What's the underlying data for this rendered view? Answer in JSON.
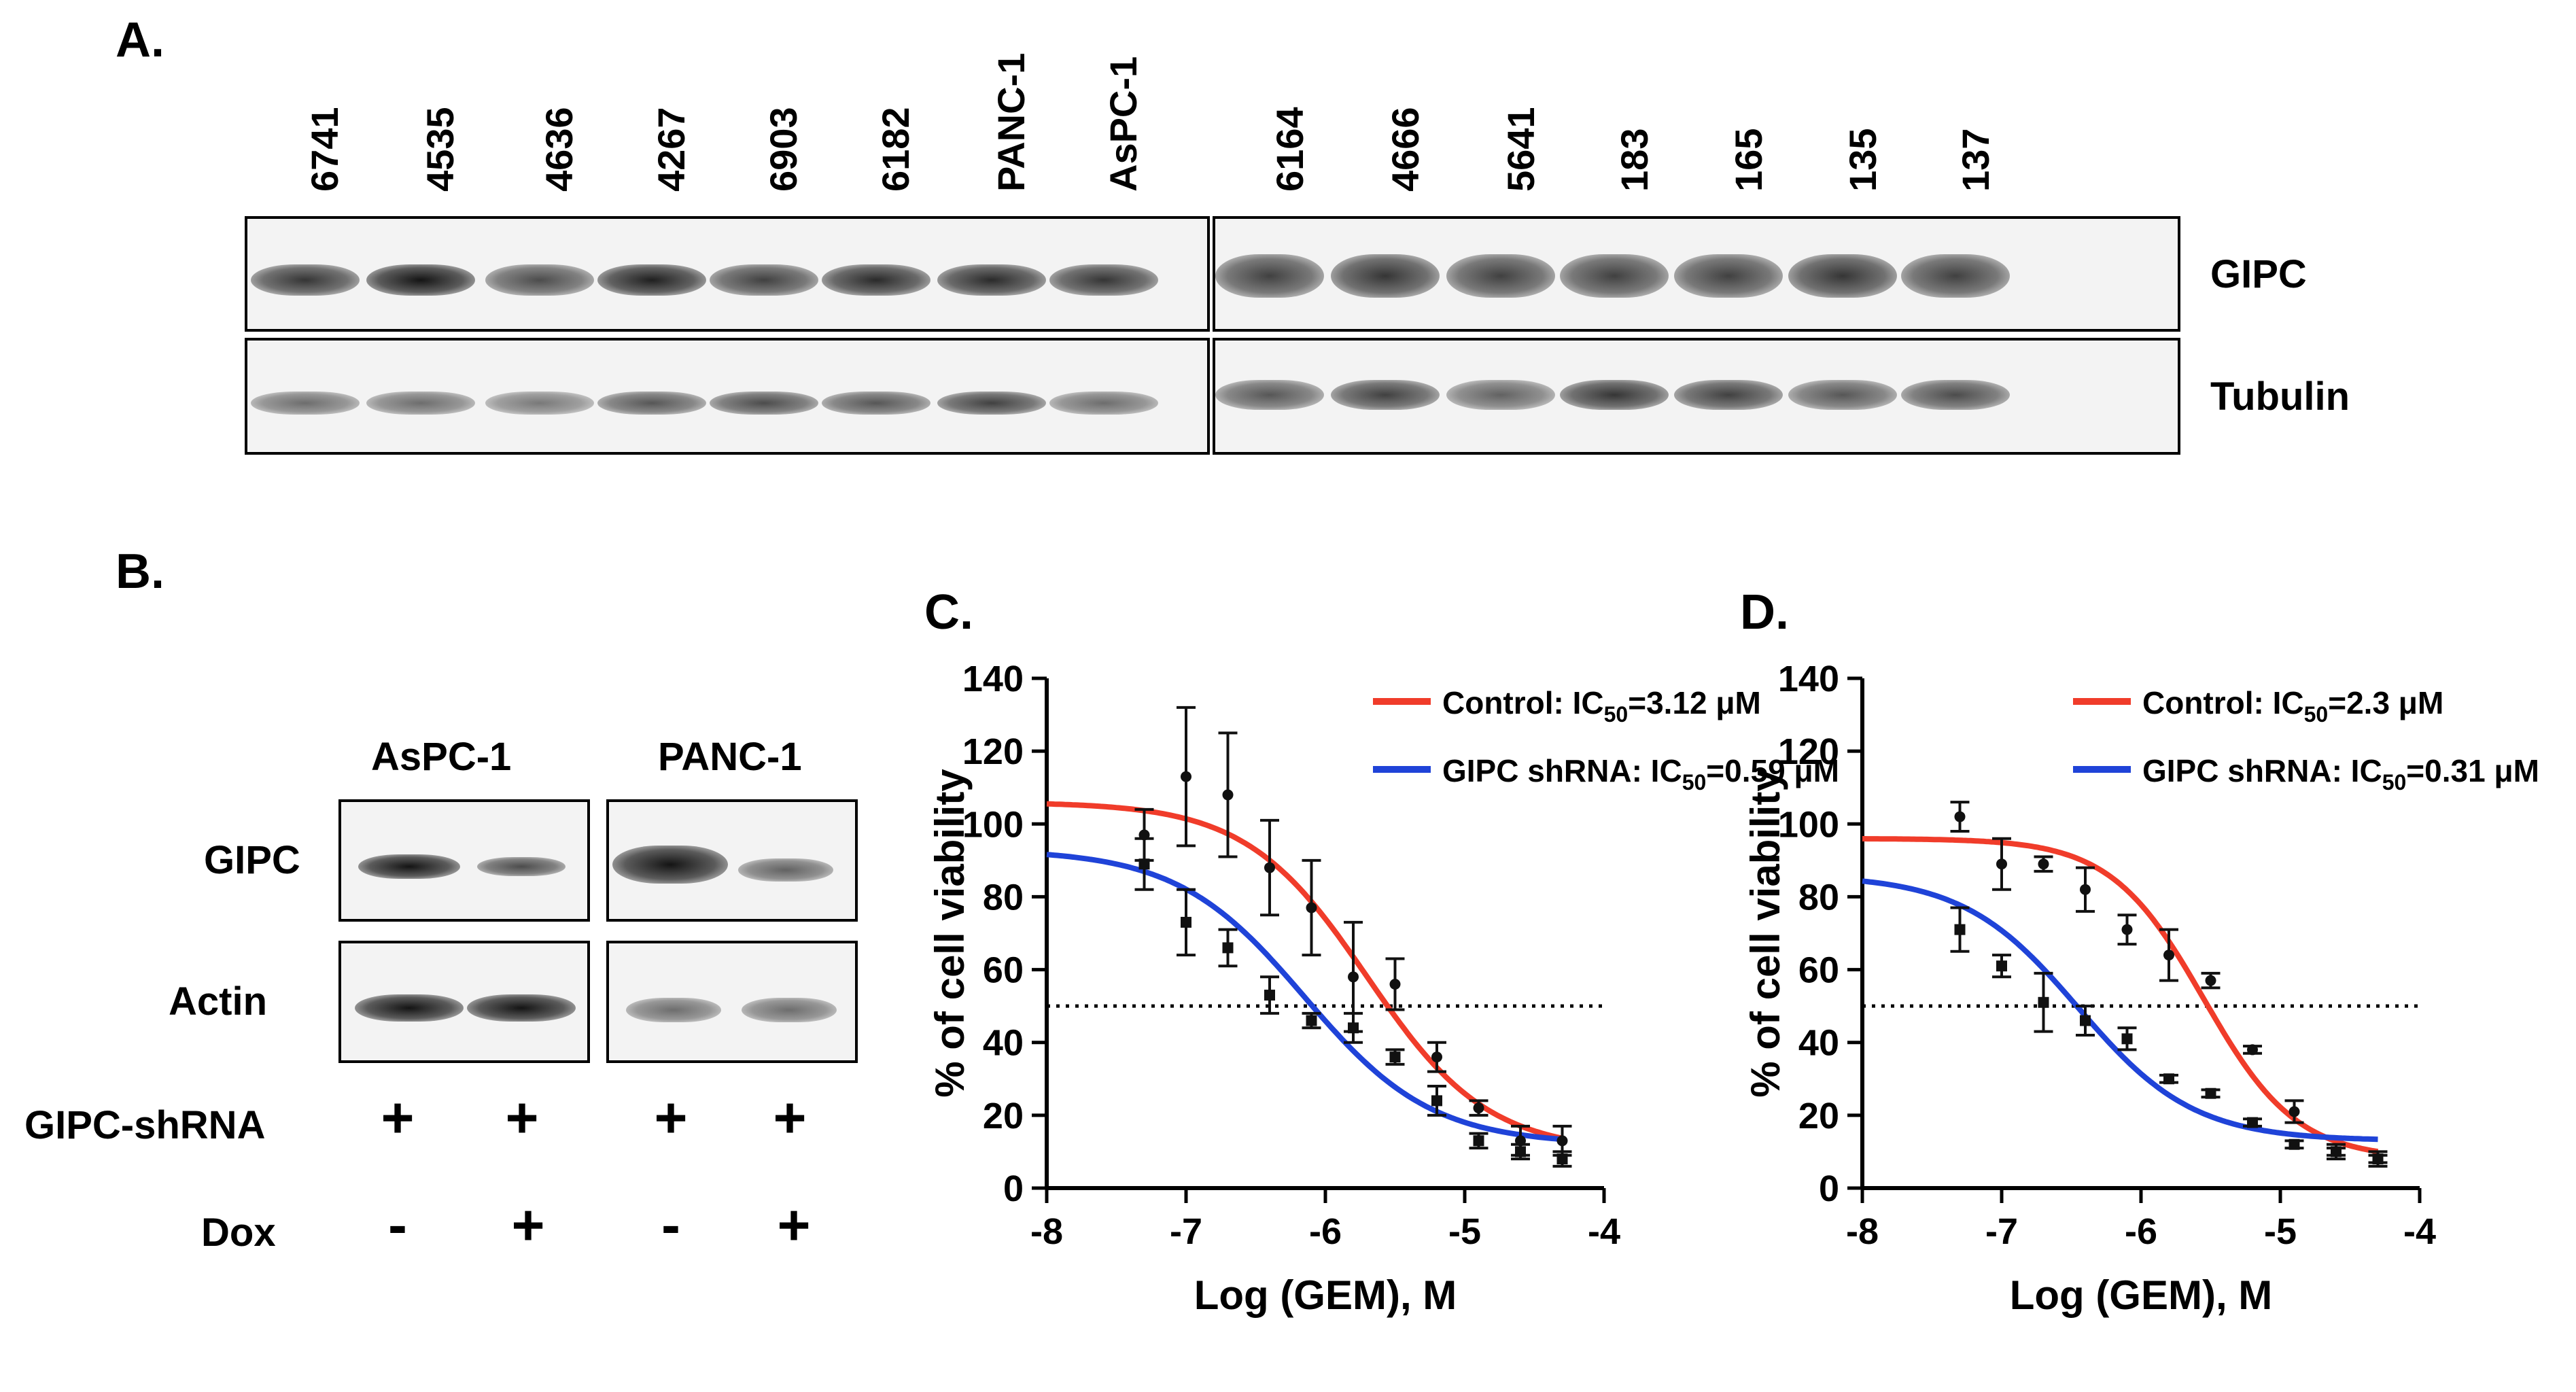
{
  "panel_a": {
    "label": "A.",
    "lanes_left": [
      "6741",
      "4535",
      "4636",
      "4267",
      "6903",
      "6182",
      "PANC-1",
      "AsPC-1"
    ],
    "lanes_right": [
      "6164",
      "4666",
      "5641",
      "183",
      "165",
      "135",
      "137"
    ],
    "rows": [
      "GIPC",
      "Tubulin"
    ]
  },
  "panel_b": {
    "label": "B.",
    "cell_lines": [
      "AsPC-1",
      "PANC-1"
    ],
    "rows": [
      "GIPC",
      "Actin"
    ],
    "treatments": [
      {
        "name": "GIPC-shRNA",
        "signs": [
          "+",
          "+",
          "+",
          "+"
        ]
      },
      {
        "name": "Dox",
        "signs": [
          "-",
          "+",
          "-",
          "+"
        ]
      }
    ]
  },
  "chart_data": [
    {
      "panel": "C.",
      "type": "scatter",
      "xlabel": "Log (GEM), M",
      "ylabel": "% of cell viability",
      "xlim": [
        -8,
        -4
      ],
      "ylim": [
        0,
        140
      ],
      "xticks": [
        "-8",
        "-7",
        "-6",
        "-5",
        "-4"
      ],
      "yticks": [
        "0",
        "20",
        "40",
        "60",
        "80",
        "100",
        "120",
        "140"
      ],
      "reference_line_y": 50,
      "legend_position": "top-right",
      "series": [
        {
          "name": "Control",
          "ic50_label": "Control: IC50=3.12 μM",
          "ic50_prefix": "Control: IC",
          "ic50_sub": "50",
          "ic50_value": "=3.12 μM",
          "color": "#f03c2a",
          "curve": {
            "top": 106,
            "bottom": 10,
            "log_ic50": -5.7,
            "hill": 1.0
          },
          "x": [
            -7.3,
            -7.0,
            -6.7,
            -6.4,
            -6.1,
            -5.8,
            -5.5,
            -5.2,
            -4.9,
            -4.6,
            -4.3
          ],
          "y": [
            97,
            113,
            108,
            88,
            77,
            58,
            56,
            36,
            22,
            13,
            13
          ],
          "err": [
            7,
            19,
            17,
            13,
            13,
            15,
            7,
            4,
            2,
            4,
            4
          ]
        },
        {
          "name": "GIPC shRNA",
          "ic50_label": "GIPC shRNA: IC50=0.59 μM",
          "ic50_prefix": "GIPC shRNA: IC",
          "ic50_sub": "50",
          "ic50_value": "=0.59 μM",
          "color": "#1f43d8",
          "curve": {
            "top": 93,
            "bottom": 12,
            "log_ic50": -6.15,
            "hill": 0.95
          },
          "x": [
            -7.3,
            -7.0,
            -6.7,
            -6.4,
            -6.1,
            -5.8,
            -5.5,
            -5.2,
            -4.9,
            -4.6,
            -4.3
          ],
          "y": [
            89,
            73,
            66,
            53,
            46,
            44,
            36,
            24,
            13,
            10,
            8
          ],
          "err": [
            7,
            9,
            5,
            5,
            2,
            4,
            2,
            4,
            2,
            2,
            2
          ]
        }
      ]
    },
    {
      "panel": "D.",
      "type": "scatter",
      "xlabel": "Log (GEM), M",
      "ylabel": "% of cell viability",
      "xlim": [
        -8,
        -4
      ],
      "ylim": [
        0,
        140
      ],
      "xticks": [
        "-8",
        "-7",
        "-6",
        "-5",
        "-4"
      ],
      "yticks": [
        "0",
        "20",
        "40",
        "60",
        "80",
        "100",
        "120",
        "140"
      ],
      "reference_line_y": 50,
      "legend_position": "top-right",
      "series": [
        {
          "name": "Control",
          "ic50_label": "Control: IC50=2.3 μM",
          "ic50_prefix": "Control: IC",
          "ic50_sub": "50",
          "ic50_value": "=2.3 μM",
          "color": "#f03c2a",
          "curve": {
            "top": 96,
            "bottom": 8,
            "log_ic50": -5.55,
            "hill": 1.3
          },
          "x": [
            -7.3,
            -7.0,
            -6.7,
            -6.4,
            -6.1,
            -5.8,
            -5.5,
            -5.2,
            -4.9,
            -4.6,
            -4.3
          ],
          "y": [
            102,
            89,
            89,
            82,
            71,
            64,
            57,
            38,
            21,
            10,
            8
          ],
          "err": [
            4,
            7,
            2,
            6,
            4,
            7,
            2,
            1,
            3,
            2,
            2
          ]
        },
        {
          "name": "GIPC shRNA",
          "ic50_label": "GIPC shRNA: IC50=0.31 μM",
          "ic50_prefix": "GIPC shRNA: IC",
          "ic50_sub": "50",
          "ic50_value": "=0.31 μM",
          "color": "#1f43d8",
          "curve": {
            "top": 86,
            "bottom": 13,
            "log_ic50": -6.45,
            "hill": 1.05
          },
          "x": [
            -7.3,
            -7.0,
            -6.7,
            -6.4,
            -6.1,
            -5.8,
            -5.5,
            -5.2,
            -4.9,
            -4.6,
            -4.3
          ],
          "y": [
            71,
            61,
            51,
            46,
            41,
            30,
            26,
            18,
            12,
            10,
            8
          ],
          "err": [
            6,
            3,
            8,
            4,
            3,
            1,
            1,
            1,
            1,
            1,
            1
          ]
        }
      ]
    }
  ]
}
